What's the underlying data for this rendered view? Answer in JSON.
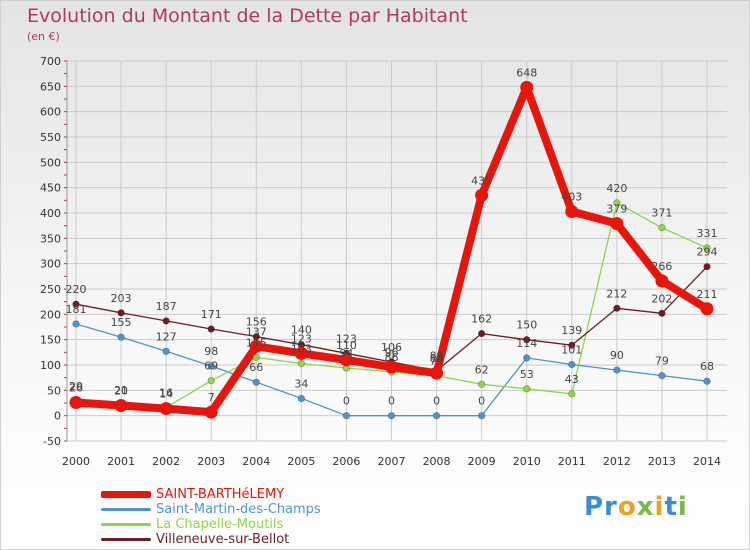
{
  "title": "Evolution du Montant de la Dette par Habitant",
  "unit": "(en €)",
  "logo": {
    "text": "Proxiti"
  },
  "colors": {
    "title": "#b23a5a",
    "grid": "#cccccc",
    "axis_tick": "#c03030"
  },
  "chart_data": {
    "type": "line",
    "title": "Evolution du Montant de la Dette par Habitant",
    "ylabel": "(en €)",
    "xlabel": "",
    "x": [
      "2000",
      "2001",
      "2002",
      "2003",
      "2004",
      "2005",
      "2006",
      "2007",
      "2008",
      "2009",
      "2010",
      "2011",
      "2012",
      "2013",
      "2014"
    ],
    "ylim": [
      -50,
      700
    ],
    "yticks": [
      -50,
      0,
      50,
      100,
      150,
      200,
      250,
      300,
      350,
      400,
      450,
      500,
      550,
      600,
      650,
      700
    ],
    "grid": true,
    "legend_position": "bottom-left",
    "series": [
      {
        "name": "SAINT-BARTHéLEMY",
        "color": "#e8150c",
        "values": [
          26,
          20,
          14,
          7,
          137,
          123,
          110,
          96,
          84,
          435,
          648,
          403,
          379,
          266,
          211
        ],
        "labels": [
          "26",
          "20",
          "14",
          "7",
          "137",
          "123",
          "110",
          "96",
          "84",
          "435",
          "648",
          "403",
          "379",
          "266",
          "211"
        ]
      },
      {
        "name": "Saint-Martin-des-Champs",
        "color": "#4f93cf",
        "values": [
          181,
          155,
          127,
          98,
          66,
          34,
          0,
          0,
          0,
          0,
          114,
          101,
          90,
          79,
          68
        ],
        "labels": [
          "181",
          "155",
          "127",
          "98",
          "66",
          "34",
          "0",
          "0",
          "0",
          "0",
          "114",
          "101",
          "90",
          "79",
          "68"
        ]
      },
      {
        "name": "La Chapelle-Moutils",
        "color": "#8ed54a",
        "values": [
          29,
          21,
          16,
          69,
          115,
          103,
          94,
          86,
          79,
          62,
          53,
          43,
          420,
          371,
          331
        ],
        "labels": [
          "29",
          "21",
          "16",
          "69",
          "115",
          "103",
          "94",
          "86",
          "79",
          "62",
          "53",
          "43",
          "420",
          "371",
          "331"
        ]
      },
      {
        "name": "Villeneuve-sur-Bellot",
        "color": "#6e1c22",
        "values": [
          220,
          203,
          187,
          171,
          156,
          140,
          123,
          106,
          89,
          162,
          150,
          139,
          212,
          202,
          294
        ],
        "labels": [
          "220",
          "203",
          "187",
          "171",
          "156",
          "140",
          "123",
          "106",
          "89",
          "162",
          "150",
          "139",
          "212",
          "202",
          "294"
        ]
      }
    ]
  }
}
